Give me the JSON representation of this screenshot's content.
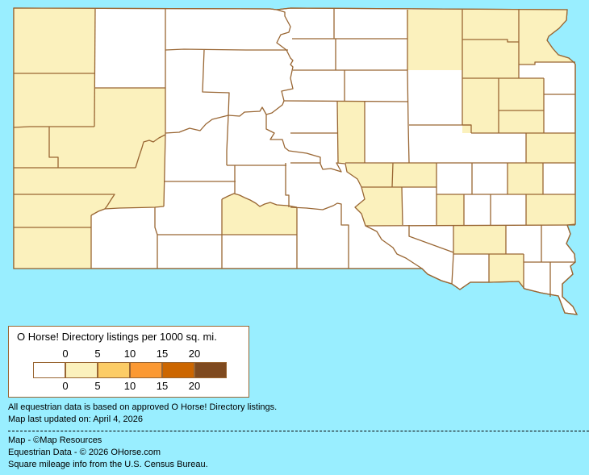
{
  "legend": {
    "title": "O Horse! Directory listings per 1000 sq. mi.",
    "top_labels": [
      "0",
      "5",
      "10",
      "15",
      "20"
    ],
    "bottom_labels": [
      "0",
      "5",
      "10",
      "15",
      "20"
    ],
    "colors": [
      "#FFFFFF",
      "#FBF1BD",
      "#FCCC66",
      "#FB9933",
      "#CC6600",
      "#7F4A1F"
    ]
  },
  "map": {
    "background_color": "#99EEFF",
    "border_color": "#996633",
    "county_fill_colors": {
      "0-5": "#FFFFFF",
      "5-10": "#FBF1BD"
    }
  },
  "notes": {
    "data_basis": "All equestrian data is based on approved O Horse! Directory listings.",
    "updated": "Map last updated on: April 4, 2026"
  },
  "credits": {
    "map": "Map - ©Map Resources",
    "equestrian": "Equestrian Data - © 2026 OHorse.com",
    "census": "Square mileage info from the U.S. Census Bureau."
  }
}
